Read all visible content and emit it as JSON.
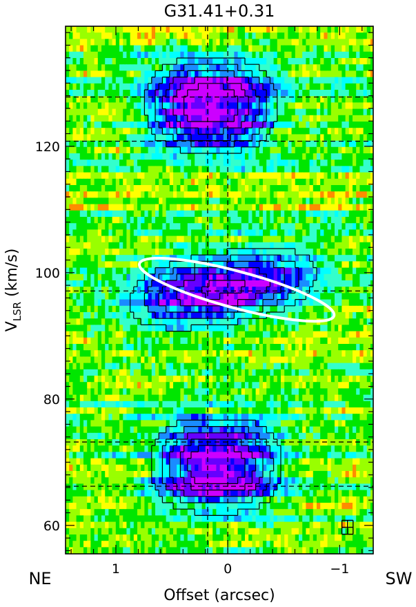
{
  "chart_data": {
    "type": "heatmap",
    "title": "G31.41+0.31",
    "xlabel": "Offset (arcsec)",
    "ylabel_main": "V",
    "ylabel_sub": "LSR",
    "ylabel_unit": " (km/s)",
    "x_direction_left": "NE",
    "x_direction_right": "SW",
    "xlim": [
      1.45,
      -1.3
    ],
    "ylim": [
      55.5,
      139
    ],
    "x_ticks": [
      {
        "value": 1,
        "label": "1"
      },
      {
        "value": 0,
        "label": "0"
      },
      {
        "value": -1,
        "label": "−1"
      }
    ],
    "y_ticks": [
      {
        "value": 60,
        "label": "60"
      },
      {
        "value": 80,
        "label": "80"
      },
      {
        "value": 100,
        "label": "100"
      },
      {
        "value": 120,
        "label": "120"
      }
    ],
    "x_minor_step": 0.2,
    "y_minor_step": 2,
    "dashed_vertical_offsets": [
      0.18,
      0.0
    ],
    "dashed_horizontal_velocities": [
      127.8,
      120.8,
      97.1,
      73.2,
      66.2
    ],
    "emission_components": [
      {
        "name": "upper",
        "center_offset": 0.15,
        "center_velocity": 126.5,
        "offset_halfwidth": 0.58,
        "velocity_halfwidth": 7.5,
        "peak": 1.0
      },
      {
        "name": "middle",
        "center_offset": 0.05,
        "center_velocity": 97.5,
        "offset_halfwidth": 0.85,
        "velocity_halfwidth": 5.8,
        "peak": 0.9,
        "tilt": -0.22
      },
      {
        "name": "lower",
        "center_offset": 0.1,
        "center_velocity": 69.5,
        "offset_halfwidth": 0.58,
        "velocity_halfwidth": 7.5,
        "peak": 1.0
      }
    ],
    "ellipse": {
      "center_offset": -0.08,
      "center_velocity": 97.3,
      "semi_major_arcsec": 0.9,
      "semi_minor_kms": 2.9,
      "angle_deg": 15,
      "color": "#ffffff"
    },
    "error_bar": {
      "offset": -1.07,
      "velocity": 59.7,
      "offset_error": 0.05,
      "velocity_error": 1.1
    },
    "colormap": [
      "#ff1a00",
      "#ff8c00",
      "#ffff00",
      "#99ff00",
      "#00e600",
      "#33ffcc",
      "#00ffff",
      "#1a8cff",
      "#0000ff",
      "#6600ff",
      "#cc00ff"
    ],
    "contour_color": "#000000",
    "dash_color": "#000000",
    "grid": false
  }
}
